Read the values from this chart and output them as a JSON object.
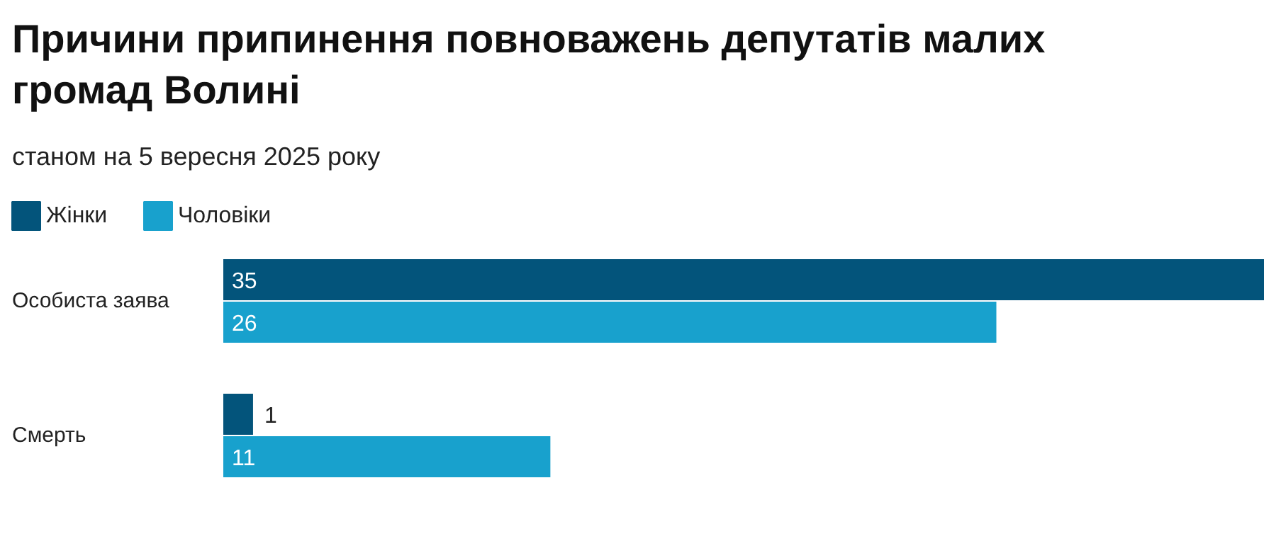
{
  "chart_data": {
    "type": "bar",
    "orientation": "horizontal",
    "title": "Причини припинення повноважень депутатів малих громад Волині",
    "subtitle": "станом на 5 вересня 2025 року",
    "categories": [
      "Особиста заява",
      "Смерть"
    ],
    "series": [
      {
        "name": "Жінки",
        "color": "#03547b",
        "values": [
          35,
          1
        ]
      },
      {
        "name": "Чоловіки",
        "color": "#18a1cd",
        "values": [
          26,
          11
        ]
      }
    ],
    "data_labels": true,
    "legend": "top left"
  }
}
